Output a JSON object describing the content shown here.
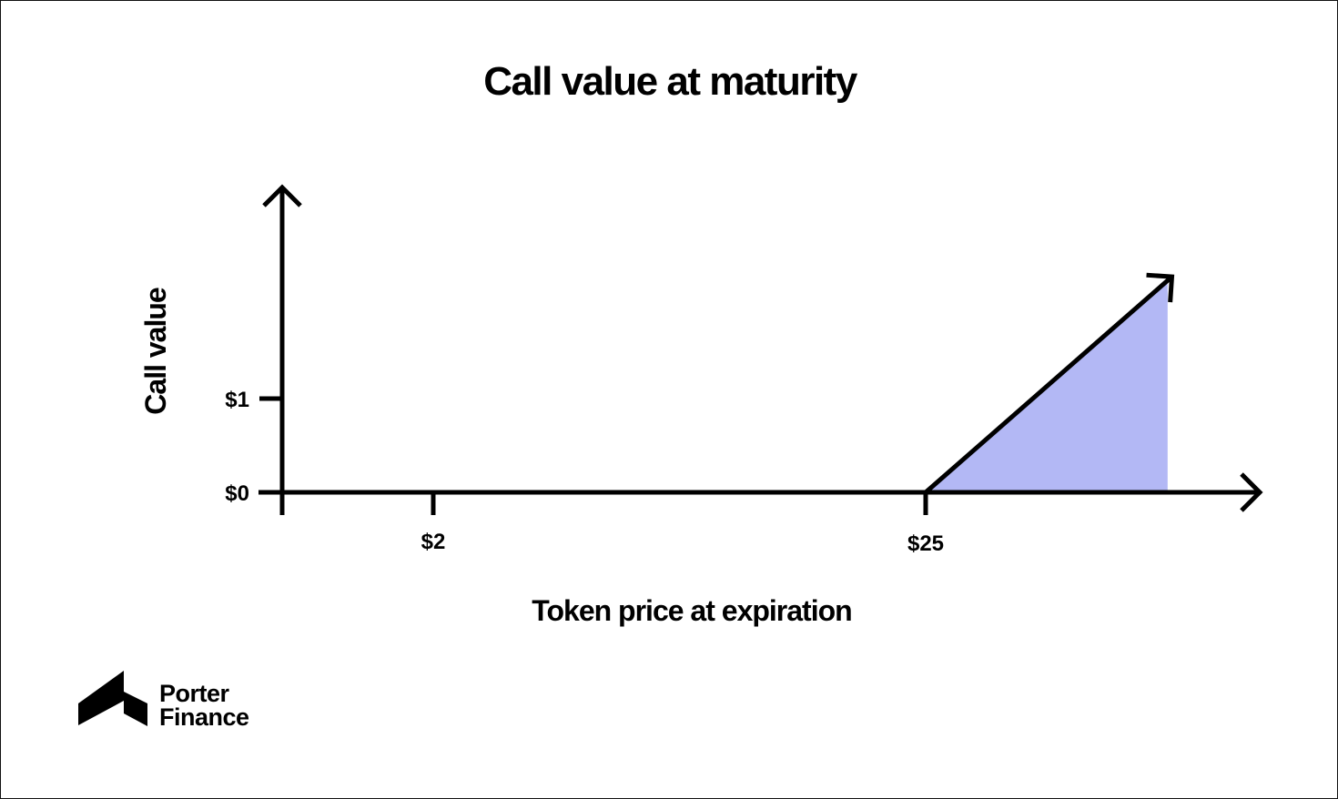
{
  "chart_data": {
    "type": "line",
    "title": "Call value at maturity",
    "xlabel": "Token price at expiration",
    "ylabel": "Call value",
    "x_ticks": [
      "$2",
      "$25"
    ],
    "y_ticks": [
      "$0",
      "$1"
    ],
    "strike": 25,
    "series": [
      {
        "x": [
          2,
          25,
          36.5
        ],
        "y": [
          0,
          0,
          2.3
        ]
      }
    ],
    "shaded_region": {
      "from": 25,
      "to": 36.3
    },
    "xlim": [
      -5,
      40
    ],
    "ylim": [
      0,
      3.3
    ],
    "grid": false,
    "colors": {
      "axes": "#000000",
      "fill": "#b3b8f5",
      "line": "#000000"
    }
  },
  "brand": {
    "line1": "Porter",
    "line2": "Finance"
  }
}
